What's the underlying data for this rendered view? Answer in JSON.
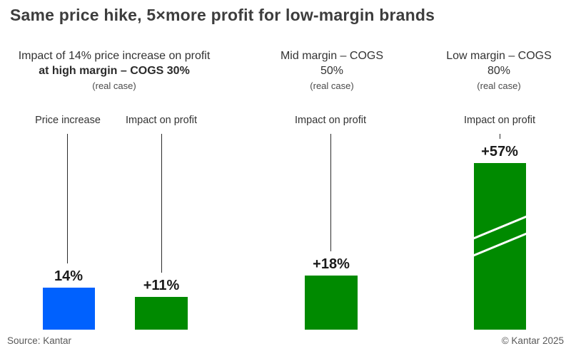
{
  "title": "Same price hike, 5×more profit for low-margin brands",
  "footer": {
    "source": "Source: Kantar",
    "copyright": "© Kantar 2025"
  },
  "chart_data": {
    "type": "bar",
    "title": "Same price hike, 5×more profit for low-margin brands",
    "unit": "percent",
    "legend_position": "none",
    "grid": false,
    "colors": {
      "price_increase": "#0061FE",
      "impact_on_profit": "#008A00"
    },
    "panels": [
      {
        "header": {
          "prefix": "Impact of 14% price increase on profit",
          "bold": "at high margin – COGS 30%",
          "note": "(real case)"
        },
        "bars": [
          {
            "label": "Price increase",
            "value": 14,
            "value_label": "14%",
            "color": "#0061FE"
          },
          {
            "label": "Impact on profit",
            "value": 11,
            "value_label": "+11%",
            "color": "#008A00"
          }
        ]
      },
      {
        "header": {
          "line1": "Mid margin – COGS",
          "line2": "50%",
          "note": "(real case)"
        },
        "bars": [
          {
            "label": "Impact on profit",
            "value": 18,
            "value_label": "+18%",
            "color": "#008A00"
          }
        ]
      },
      {
        "header": {
          "line1": "Low margin – COGS",
          "line2": "80%",
          "note": "(real case)"
        },
        "bars": [
          {
            "label": "Impact on profit",
            "value": 57,
            "value_label": "+57%",
            "color": "#008A00",
            "axis_break": true
          }
        ]
      }
    ]
  }
}
